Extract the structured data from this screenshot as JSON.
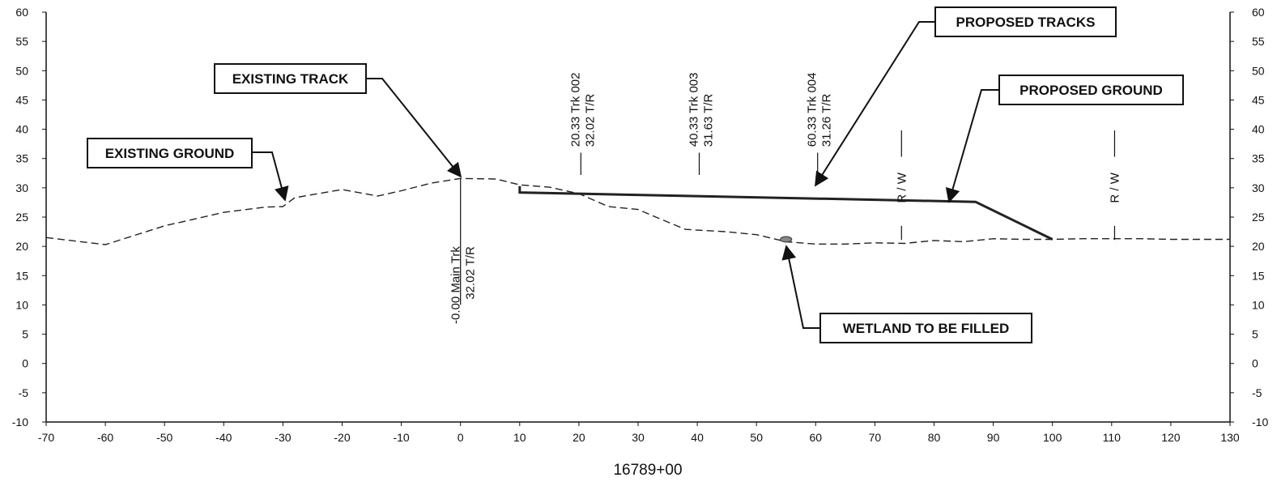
{
  "chart_data": {
    "type": "line",
    "title": "",
    "station": "16789+00",
    "xlabel": "",
    "ylabel": "",
    "xlim": [
      -70,
      130
    ],
    "ylim": [
      -10,
      60
    ],
    "x_ticks": [
      "-70",
      "-60",
      "-50",
      "-40",
      "-30",
      "-20",
      "-10",
      "0",
      "10",
      "20",
      "30",
      "40",
      "50",
      "60",
      "70",
      "80",
      "90",
      "100",
      "110",
      "120",
      "130"
    ],
    "y_ticks": [
      "60",
      "55",
      "50",
      "45",
      "40",
      "35",
      "30",
      "25",
      "20",
      "15",
      "10",
      "5",
      "0",
      "-5",
      "-10"
    ],
    "grid": false,
    "series": [
      {
        "name": "EXISTING GROUND",
        "style": "dashed",
        "color": "#222222",
        "x": [
          -70,
          -60,
          -50,
          -40,
          -33,
          -30,
          -28,
          -20,
          -14,
          -10,
          -5,
          0,
          6,
          10,
          15,
          20,
          25,
          30,
          33,
          38,
          45,
          50,
          55,
          60,
          65,
          70,
          75,
          80,
          85,
          90,
          95,
          100,
          105,
          110,
          115,
          120,
          125,
          130
        ],
        "y": [
          21.5,
          20.3,
          23.5,
          25.8,
          26.7,
          26.8,
          28.3,
          29.7,
          28.6,
          29.5,
          30.8,
          31.6,
          31.5,
          30.5,
          30.1,
          29.0,
          26.8,
          26.3,
          25.0,
          22.9,
          22.5,
          22.0,
          20.8,
          20.4,
          20.4,
          20.6,
          20.5,
          21.0,
          20.8,
          21.3,
          21.2,
          21.2,
          21.3,
          21.3,
          21.3,
          21.2,
          21.2,
          21.2
        ]
      },
      {
        "name": "PROPOSED GROUND",
        "style": "solid",
        "color": "#222222",
        "x": [
          10,
          10,
          87,
          100
        ],
        "y": [
          30.3,
          29.2,
          27.6,
          21.2
        ]
      }
    ],
    "track_labels": [
      {
        "x": -0.0,
        "line1": "-0.00 Main Trk",
        "line2": "32.02 T/R"
      },
      {
        "x": 20.33,
        "line1": "20.33 Trk 002",
        "line2": "32.02 T/R"
      },
      {
        "x": 40.33,
        "line1": "40.33 Trk 003",
        "line2": "31.63 T/R"
      },
      {
        "x": 60.33,
        "line1": "60.33 Trk 004",
        "line2": "31.26 T/R"
      }
    ],
    "row_markers": [
      {
        "x": 74.5,
        "label": "R / W"
      },
      {
        "x": 110.5,
        "label": "R / W"
      }
    ],
    "callouts": {
      "existing_ground": "EXISTING GROUND",
      "existing_track": "EXISTING TRACK",
      "proposed_tracks": "PROPOSED TRACKS",
      "proposed_ground": "PROPOSED GROUND",
      "wetland": "WETLAND TO BE FILLED"
    },
    "wetland": {
      "x": 55,
      "y": 21.2
    }
  }
}
